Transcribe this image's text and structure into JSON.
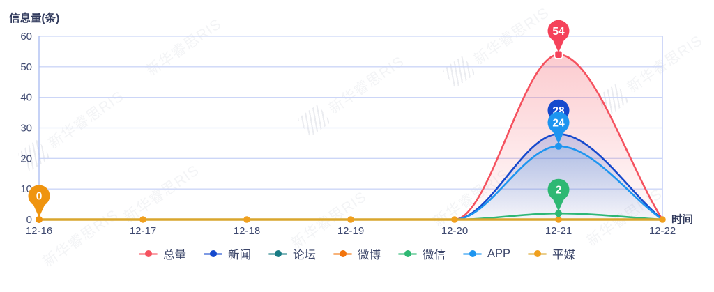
{
  "title": "信息量(条)",
  "x_axis_title": "时间",
  "watermark": {
    "text": "新华睿思RIS"
  },
  "chart_data": {
    "type": "line",
    "title": "信息量(条)",
    "xlabel": "时间",
    "ylabel": "信息量(条)",
    "categories": [
      "12-16",
      "12-17",
      "12-18",
      "12-19",
      "12-20",
      "12-21",
      "12-22"
    ],
    "ylim": [
      0,
      60
    ],
    "yticks": [
      0,
      10,
      20,
      30,
      40,
      50,
      60
    ],
    "grid": true,
    "legend_position": "bottom",
    "series": [
      {
        "name": "总量",
        "color": "#f5525f",
        "area": true,
        "area_alpha": 0.3,
        "values": [
          0,
          0,
          0,
          0,
          0,
          54,
          0
        ]
      },
      {
        "name": "新闻",
        "color": "#1549cd",
        "area": true,
        "area_alpha": 0.22,
        "values": [
          0,
          0,
          0,
          0,
          0,
          28,
          0
        ]
      },
      {
        "name": "论坛",
        "color": "#177b84",
        "area": false,
        "values": [
          0,
          0,
          0,
          0,
          0,
          0,
          0
        ]
      },
      {
        "name": "微博",
        "color": "#f2740c",
        "area": false,
        "values": [
          0,
          0,
          0,
          0,
          0,
          0,
          0
        ]
      },
      {
        "name": "微信",
        "color": "#2eb873",
        "area": false,
        "values": [
          0,
          0,
          0,
          0,
          0,
          2,
          0
        ]
      },
      {
        "name": "APP",
        "color": "#1d95f0",
        "area": true,
        "area_alpha": 0.18,
        "values": [
          0,
          0,
          0,
          0,
          0,
          24,
          0
        ]
      },
      {
        "name": "平媒",
        "color": "#f0a01e",
        "line_color": "#d9a62e",
        "values": [
          0,
          0,
          0,
          0,
          0,
          0,
          0
        ]
      }
    ],
    "pins": [
      {
        "series": "新闻",
        "category": "12-21",
        "value": 28,
        "color": "#1549cd"
      },
      {
        "series": "APP",
        "category": "12-21",
        "value": 24,
        "color": "#1d95f0"
      },
      {
        "series": "微信",
        "category": "12-21",
        "value": 2,
        "color": "#2eb873"
      },
      {
        "series": "平媒",
        "category": "12-16",
        "value": 0,
        "color": "#ef940f"
      },
      {
        "series": "总量",
        "category": "12-21",
        "value": 54,
        "color": "#f5425a"
      }
    ]
  }
}
